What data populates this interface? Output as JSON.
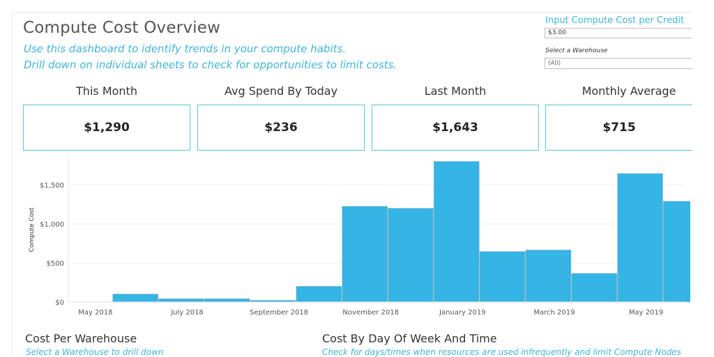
{
  "dashboard": {
    "title": "Compute Cost Overview",
    "subtitle_1": "Use this dashboard to identify trends in your compute habits.",
    "subtitle_2": "Drill down on individual sheets to check for opportunities to limit costs."
  },
  "parameter": {
    "label": "Input Compute Cost per Credit",
    "value": "$3.00"
  },
  "filter": {
    "label": "Select a Warehouse",
    "value": "(All)"
  },
  "kpis": [
    {
      "label": "This Month",
      "value": "$1,290"
    },
    {
      "label": "Avg Spend By Today",
      "value": "$236"
    },
    {
      "label": "Last Month",
      "value": "$1,643"
    },
    {
      "label": "Monthly Average",
      "value": "$715"
    }
  ],
  "sections": {
    "warehouse_title": "Cost Per Warehouse",
    "warehouse_sub": "Select a Warehouse to drill down",
    "dow_title": "Cost By Day Of Week And Time",
    "dow_sub": "Check for days/times when resources are used infrequently and limit Compute Nodes"
  },
  "chart_data": {
    "type": "bar",
    "ylabel": "Compute Cost",
    "ylim": [
      0,
      1850
    ],
    "y_ticks": [
      {
        "value": 0,
        "label": "$0"
      },
      {
        "value": 500,
        "label": "$500"
      },
      {
        "value": 1000,
        "label": "$1,000"
      },
      {
        "value": 1500,
        "label": "$1,500"
      }
    ],
    "categories": [
      "May 2018",
      "Jun 2018",
      "Jul 2018",
      "Aug 2018",
      "Sep 2018",
      "Oct 2018",
      "Nov 2018",
      "Dec 2018",
      "Jan 2019",
      "Feb 2019",
      "Mar 2019",
      "Apr 2019",
      "May 2019",
      "Jun 2019"
    ],
    "values": [
      0,
      100,
      40,
      40,
      20,
      200,
      1225,
      1200,
      1800,
      645,
      665,
      365,
      1645,
      1290
    ],
    "x_tick_labels": [
      {
        "index": 0,
        "label": "May 2018"
      },
      {
        "index": 2,
        "label": "July 2018"
      },
      {
        "index": 4,
        "label": "September 2018"
      },
      {
        "index": 6,
        "label": "November 2018"
      },
      {
        "index": 8,
        "label": "January 2019"
      },
      {
        "index": 10,
        "label": "March 2019"
      },
      {
        "index": 12,
        "label": "May 2019"
      }
    ],
    "bar_color": "#35b4e6",
    "grid": true
  }
}
